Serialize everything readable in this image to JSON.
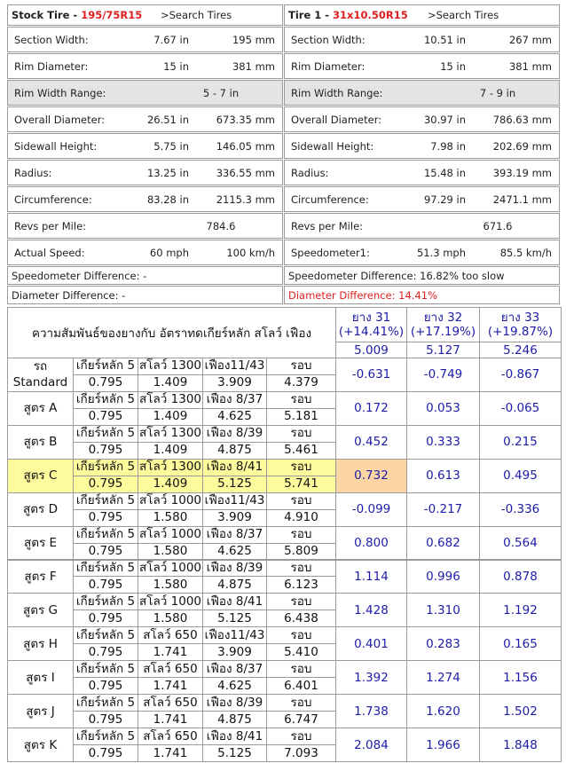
{
  "stock": {
    "title": "Stock Tire - ",
    "size": "195/75R15",
    "search": ">Search Tires",
    "rows": [
      [
        "Section Width:",
        "7.67 in",
        "195 mm"
      ],
      [
        "Rim Diameter:",
        "15 in",
        "381 mm"
      ],
      [
        "Rim Width Range:",
        "5 - 7 in"
      ],
      [
        "Overall Diameter:",
        "26.51 in",
        "673.35 mm"
      ],
      [
        "Sidewall Height:",
        "5.75 in",
        "146.05 mm"
      ],
      [
        "Radius:",
        "13.25 in",
        "336.55 mm"
      ],
      [
        "Circumference:",
        "83.28 in",
        "2115.3 mm"
      ],
      [
        "Revs per Mile:",
        "784.6"
      ],
      [
        "Actual Speed:",
        "60 mph",
        "100 km/h"
      ],
      [
        "Speedometer Difference: -"
      ],
      [
        "Diameter Difference: -"
      ]
    ]
  },
  "tire1": {
    "title": "Tire 1 - ",
    "size": "31x10.50R15",
    "search": ">Search Tires",
    "rows": [
      [
        "Section Width:",
        "10.51 in",
        "267 mm"
      ],
      [
        "Rim Diameter:",
        "15 in",
        "381 mm"
      ],
      [
        "Rim Width Range:",
        "7 - 9 in"
      ],
      [
        "Overall Diameter:",
        "30.97 in",
        "786.63 mm"
      ],
      [
        "Sidewall Height:",
        "7.98 in",
        "202.69 mm"
      ],
      [
        "Radius:",
        "15.48 in",
        "393.19 mm"
      ],
      [
        "Circumference:",
        "97.29 in",
        "2471.1 mm"
      ],
      [
        "Revs per Mile:",
        "671.6"
      ],
      [
        "Speedometer1:",
        "51.3 mph",
        "85.5 km/h"
      ],
      [
        "Speedometer Difference: 16.82% too slow"
      ],
      [
        "Diameter Difference: 14.41%"
      ]
    ]
  },
  "table": {
    "title": "ความสัมพันธ์ของยางกับ อัตราทดเกียร์หลัก สโลว์ เฟือง",
    "tires": [
      {
        "name": "ยาง 31",
        "diff": "(+14.41%)",
        "ratio": "5.009"
      },
      {
        "name": "ยาง 32",
        "diff": "(+17.19%)",
        "ratio": "5.127"
      },
      {
        "name": "ยาง 33",
        "diff": "(+19.87%)",
        "ratio": "5.246"
      }
    ],
    "rows": [
      {
        "label": "รถ Standard",
        "top": [
          "เกียร์หลัก 5",
          "สโลว์ 1300",
          "เฟือง11/43",
          "รอบ"
        ],
        "bottom": [
          "0.795",
          "1.409",
          "3.909",
          "4.379"
        ],
        "results": [
          "-0.631",
          "-0.749",
          "-0.867"
        ]
      },
      {
        "label": "สูตร A",
        "top": [
          "เกียร์หลัก 5",
          "สโลว์ 1300",
          "เฟือง 8/37",
          "รอบ"
        ],
        "bottom": [
          "0.795",
          "1.409",
          "4.625",
          "5.181"
        ],
        "results": [
          "0.172",
          "0.053",
          "-0.065"
        ]
      },
      {
        "label": "สูตร B",
        "top": [
          "เกียร์หลัก 5",
          "สโลว์ 1300",
          "เฟือง 8/39",
          "รอบ"
        ],
        "bottom": [
          "0.795",
          "1.409",
          "4.875",
          "5.461"
        ],
        "results": [
          "0.452",
          "0.333",
          "0.215"
        ]
      },
      {
        "label": "สูตร C",
        "top": [
          "เกียร์หลัก 5",
          "สโลว์ 1300",
          "เฟือง 8/41",
          "รอบ"
        ],
        "bottom": [
          "0.795",
          "1.409",
          "5.125",
          "5.741"
        ],
        "results": [
          "0.732",
          "0.613",
          "0.495"
        ],
        "highlight": true
      },
      {
        "label": "สูตร D",
        "top": [
          "เกียร์หลัก 5",
          "สโลว์ 1000",
          "เฟือง11/43",
          "รอบ"
        ],
        "bottom": [
          "0.795",
          "1.580",
          "3.909",
          "4.910"
        ],
        "results": [
          "-0.099",
          "-0.217",
          "-0.336"
        ]
      },
      {
        "label": "สูตร E",
        "top": [
          "เกียร์หลัก 5",
          "สโลว์ 1000",
          "เฟือง 8/37",
          "รอบ"
        ],
        "bottom": [
          "0.795",
          "1.580",
          "4.625",
          "5.809"
        ],
        "results": [
          "0.800",
          "0.682",
          "0.564"
        ]
      },
      {
        "label": "สูตร F",
        "top": [
          "เกียร์หลัก 5",
          "สโลว์ 1000",
          "เฟือง 8/39",
          "รอบ"
        ],
        "bottom": [
          "0.795",
          "1.580",
          "4.875",
          "6.123"
        ],
        "results": [
          "1.114",
          "0.996",
          "0.878"
        ]
      },
      {
        "label": "สูตร G",
        "top": [
          "เกียร์หลัก 5",
          "สโลว์ 1000",
          "เฟือง 8/41",
          "รอบ"
        ],
        "bottom": [
          "0.795",
          "1.580",
          "5.125",
          "6.438"
        ],
        "results": [
          "1.428",
          "1.310",
          "1.192"
        ]
      },
      {
        "label": "สูตร H",
        "top": [
          "เกียร์หลัก 5",
          "สโลว์ 650",
          "เฟือง11/43",
          "รอบ"
        ],
        "bottom": [
          "0.795",
          "1.741",
          "3.909",
          "5.410"
        ],
        "results": [
          "0.401",
          "0.283",
          "0.165"
        ]
      },
      {
        "label": "สูตร I",
        "top": [
          "เกียร์หลัก 5",
          "สโลว์ 650",
          "เฟือง 8/37",
          "รอบ"
        ],
        "bottom": [
          "0.795",
          "1.741",
          "4.625",
          "6.401"
        ],
        "results": [
          "1.392",
          "1.274",
          "1.156"
        ]
      },
      {
        "label": "สูตร J",
        "top": [
          "เกียร์หลัก 5",
          "สโลว์ 650",
          "เฟือง 8/39",
          "รอบ"
        ],
        "bottom": [
          "0.795",
          "1.741",
          "4.875",
          "6.747"
        ],
        "results": [
          "1.738",
          "1.620",
          "1.502"
        ]
      },
      {
        "label": "สูตร K",
        "top": [
          "เกียร์หลัก 5",
          "สโลว์ 650",
          "เฟือง 8/41",
          "รอบ"
        ],
        "bottom": [
          "0.795",
          "1.741",
          "5.125",
          "7.093"
        ],
        "results": [
          "2.084",
          "1.966",
          "1.848"
        ]
      }
    ]
  }
}
